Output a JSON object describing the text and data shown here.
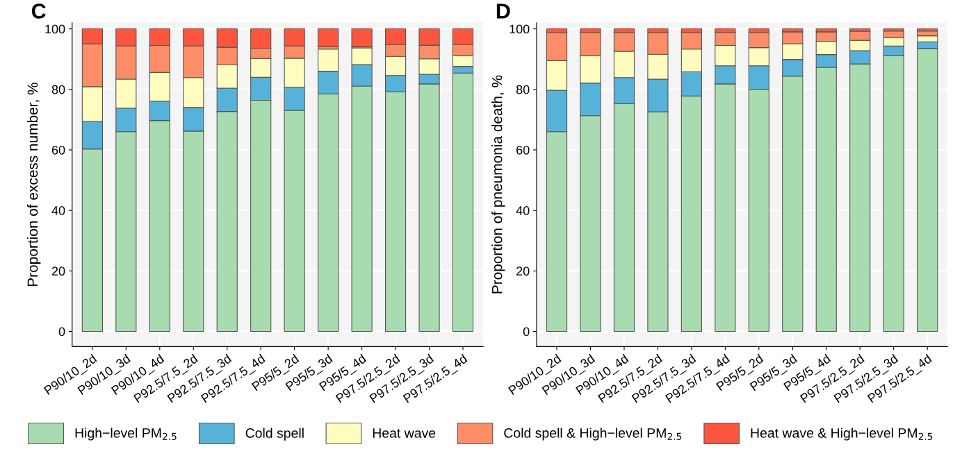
{
  "chart_data": [
    {
      "type": "bar",
      "title": "C",
      "ylabel": "Proportion of excess number, %",
      "stacked": true,
      "grid": true,
      "legend": "bottom",
      "categories": [
        "P90/10_2d",
        "P90/10_3d",
        "P90/10_4d",
        "P92.5/7.5_2d",
        "P92.5/7.5_3d",
        "P92.5/7.5_4d",
        "P95/5_2d",
        "P95/5_3d",
        "P95/5_4d",
        "P97.5/2.5_2d",
        "P97.5/2.5_3d",
        "P97.5/2.5_4d"
      ],
      "ylim": [
        -5,
        102
      ],
      "yticks": [
        0,
        20,
        40,
        60,
        80,
        100
      ],
      "series": [
        {
          "name": "High−level PM$_{2.5}$",
          "color": "#a8dcb0",
          "values": [
            60.3,
            66,
            69.7,
            66.2,
            72.7,
            76.4,
            73.1,
            78.5,
            81.1,
            79.2,
            81.8,
            85.4
          ]
        },
        {
          "name": "Cold spell",
          "color": "#56b2d9",
          "values": [
            9.1,
            7.8,
            6.4,
            7.8,
            7.7,
            7.6,
            7.6,
            7.5,
            7.1,
            5.4,
            3.2,
            2.2
          ]
        },
        {
          "name": "Heat wave",
          "color": "#fefcbf",
          "values": [
            11.5,
            9.6,
            9.5,
            9.9,
            7.7,
            6.2,
            9.6,
            7.3,
            5.5,
            6.3,
            5.1,
            3.6
          ]
        },
        {
          "name": "Cold spell & High−level PM$_{2.5}$",
          "color": "#fd8d66",
          "values": [
            14.2,
            11,
            8.9,
            10.5,
            5.8,
            3.4,
            4.1,
            0.9,
            0.5,
            3.9,
            4.5,
            3.6
          ]
        },
        {
          "name": "Heat wave & High−level PM$_{2.5}$",
          "color": "#fc553e",
          "values": [
            4.9,
            5.6,
            5.5,
            5.6,
            6.1,
            6.4,
            5.6,
            5.8,
            5.8,
            5.2,
            5.4,
            5.2
          ]
        }
      ]
    },
    {
      "type": "bar",
      "title": "D",
      "ylabel": "Proportion of pneumonia death, %",
      "stacked": true,
      "grid": true,
      "categories": [
        "P90/10_2d",
        "P90/10_3d",
        "P90/10_4d",
        "P92.5/7.5_2d",
        "P92.5/7.5_3d",
        "P92.5/7.5_4d",
        "P95/5_2d",
        "P95/5_3d",
        "P95/5_4d",
        "P97.5/2.5_2d",
        "P97.5/2.5_3d",
        "P97.5/2.5_4d"
      ],
      "ylim": [
        -5,
        102
      ],
      "yticks": [
        0,
        20,
        40,
        60,
        80,
        100
      ],
      "series": [
        {
          "color": "#a8dcb0",
          "values": [
            66,
            71.3,
            75.3,
            72.6,
            77.8,
            81.8,
            80,
            84.4,
            87.3,
            88.4,
            91.1,
            93.5
          ]
        },
        {
          "color": "#56b2d9",
          "values": [
            13.7,
            10.8,
            8.6,
            10.8,
            8,
            6,
            7.8,
            5.5,
            4.2,
            4.4,
            3.2,
            2.2
          ]
        },
        {
          "color": "#fefcbf",
          "values": [
            9.8,
            9.1,
            8.7,
            8.2,
            7.5,
            6.7,
            6,
            5.2,
            4.4,
            3.4,
            2.8,
            2
          ]
        },
        {
          "color": "#fd8d66",
          "values": [
            9.3,
            7.6,
            6.2,
            7.2,
            5.5,
            4.3,
            5,
            3.9,
            3.1,
            3,
            2.2,
            1.6
          ]
        },
        {
          "color": "#fc553e",
          "values": [
            1.2,
            1.2,
            1.2,
            1.2,
            1.2,
            1.2,
            1.2,
            1,
            1,
            0.8,
            0.7,
            0.7
          ]
        }
      ]
    }
  ]
}
